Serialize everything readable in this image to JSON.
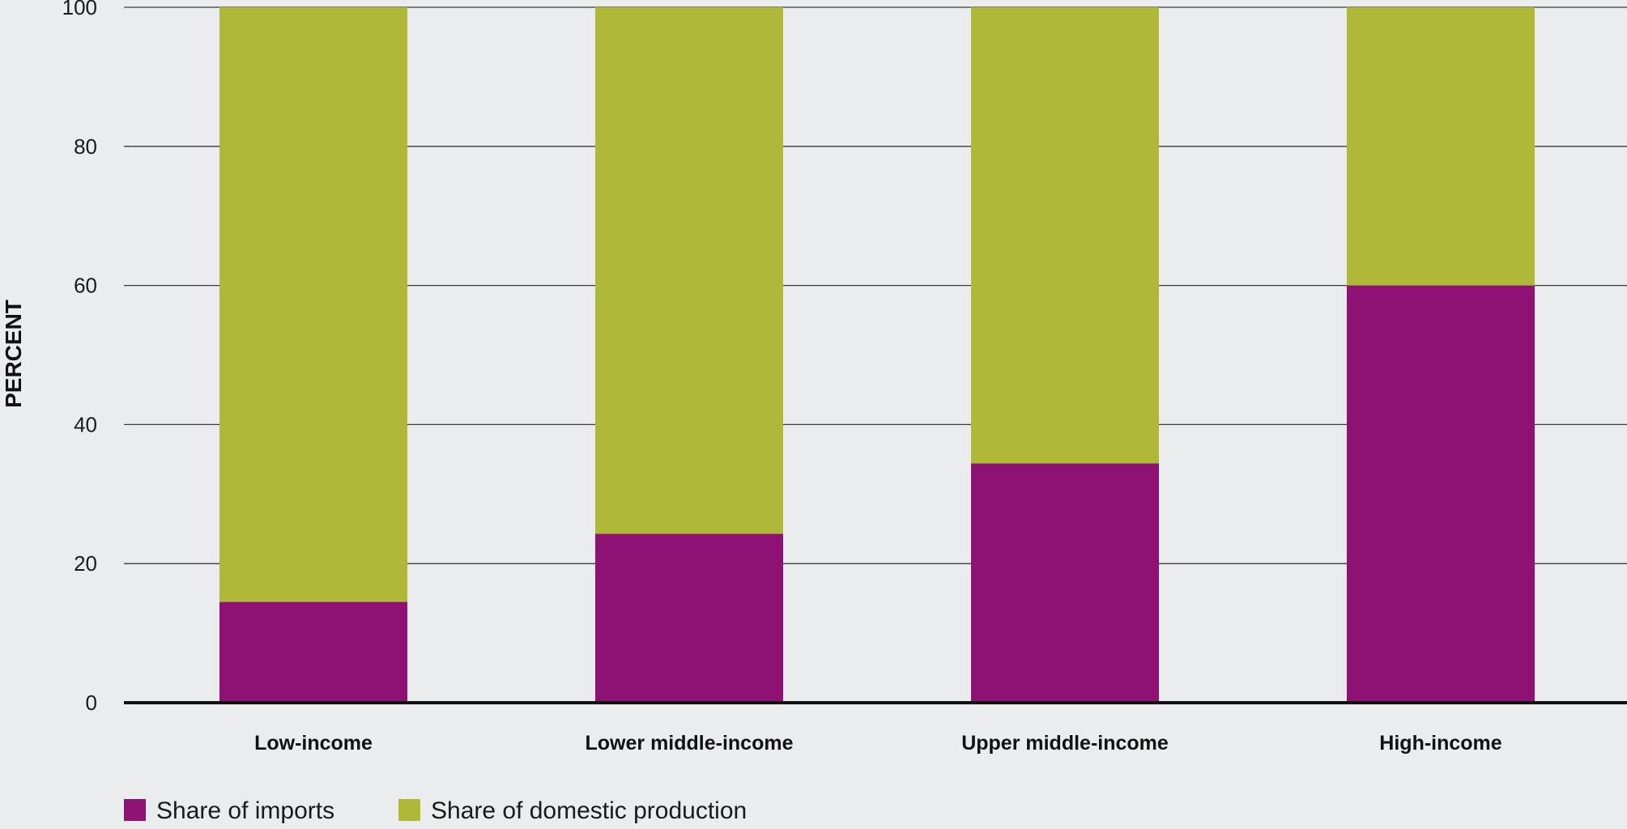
{
  "chart_data": {
    "type": "bar",
    "stacked": true,
    "ylabel": "PERCENT",
    "xlabel": "",
    "ylim": [
      0,
      100
    ],
    "yticks": [
      0,
      20,
      40,
      60,
      80,
      100
    ],
    "grid": true,
    "legend_position": "bottom-left",
    "categories": [
      "Low-income",
      "Lower middle-income",
      "Upper middle-income",
      "High-income"
    ],
    "series": [
      {
        "name": "Share of imports",
        "color": "#8e1273",
        "values": [
          14.5,
          24.3,
          34.4,
          60
        ]
      },
      {
        "name": "Share of domestic production",
        "color": "#afb937",
        "values": [
          85.5,
          75.7,
          65.6,
          40
        ]
      }
    ]
  }
}
